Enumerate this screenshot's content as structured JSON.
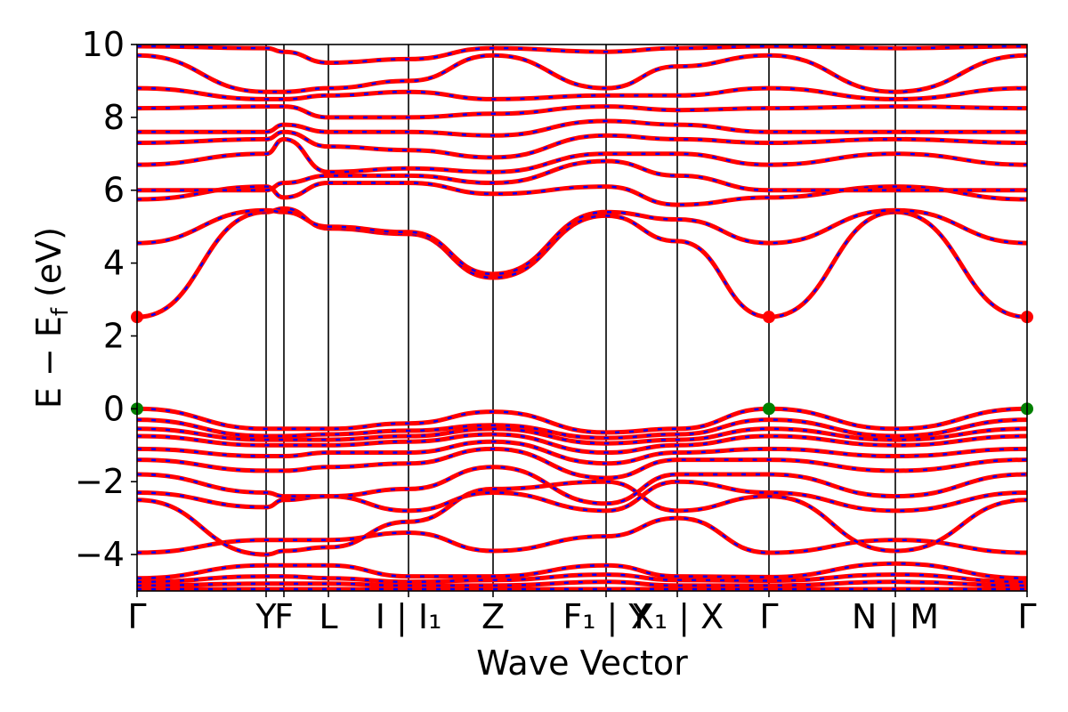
{
  "chart_data": {
    "type": "line",
    "title": "",
    "xlabel": "Wave Vector",
    "ylabel": "E − E_f (eV)",
    "ylabel_parts": {
      "main": "E − E",
      "sub": "f",
      "unit": " (eV)"
    },
    "ylim": [
      -5,
      10
    ],
    "yticks": [
      "−4",
      "−2",
      "0",
      "2",
      "4",
      "6",
      "8",
      "10"
    ],
    "ytick_values": [
      -4,
      -2,
      0,
      2,
      4,
      6,
      8,
      10
    ],
    "x_segments": [
      0,
      0.145,
      0.165,
      0.215,
      0.305,
      0.4,
      0.527,
      0.607,
      0.71,
      0.852,
      1.0
    ],
    "kpoint_labels": [
      {
        "text": "Γ",
        "x": 0.0
      },
      {
        "text": "Y",
        "x": 0.145
      },
      {
        "text": "F",
        "x": 0.165
      },
      {
        "text": "L",
        "x": 0.215
      },
      {
        "text": "I | I₁",
        "x": 0.305
      },
      {
        "text": "Z",
        "x": 0.4
      },
      {
        "text": "F₁ | Y",
        "x": 0.527
      },
      {
        "text": "X₁ | X",
        "x": 0.607
      },
      {
        "text": "Γ",
        "x": 0.71
      },
      {
        "text": "N | M",
        "x": 0.852
      },
      {
        "text": "Γ",
        "x": 1.0
      }
    ],
    "kpoint_positions": [
      0.0,
      0.145,
      0.165,
      0.215,
      0.305,
      0.4,
      0.527,
      0.607,
      0.71,
      0.852,
      1.0
    ],
    "series_style": {
      "spin_up": "#ff0000",
      "spin_down": "#0000ff"
    },
    "band_edges": {
      "cbm": {
        "energy": 2.52,
        "k": [
          0.0,
          0.71,
          1.0
        ],
        "color": "#ff0000"
      },
      "vbm": {
        "energy": 0.0,
        "k": [
          0.0,
          0.71,
          1.0
        ],
        "color": "#008000"
      }
    },
    "bands": [
      [
        -4.95,
        -4.95,
        -4.95,
        -4.95,
        -4.95,
        -4.95,
        -4.95,
        -4.95,
        -4.95,
        -4.95,
        -4.95
      ],
      [
        -4.85,
        -4.8,
        -4.8,
        -4.8,
        -4.85,
        -4.85,
        -4.75,
        -4.85,
        -4.85,
        -4.75,
        -4.85
      ],
      [
        -4.75,
        -4.6,
        -4.6,
        -4.65,
        -4.75,
        -4.7,
        -4.55,
        -4.7,
        -4.72,
        -4.55,
        -4.75
      ],
      [
        -4.65,
        -4.3,
        -4.3,
        -4.3,
        -4.6,
        -4.6,
        -4.3,
        -4.6,
        -4.62,
        -4.25,
        -4.65
      ],
      [
        -3.95,
        -3.6,
        -3.6,
        -3.6,
        -3.4,
        -3.9,
        -3.5,
        -3.0,
        -3.95,
        -3.6,
        -3.95
      ],
      [
        -2.5,
        -4.0,
        -3.9,
        -3.8,
        -3.1,
        -2.2,
        -2.0,
        -2.8,
        -2.4,
        -3.9,
        -2.5
      ],
      [
        -2.3,
        -2.7,
        -2.5,
        -2.4,
        -2.8,
        -2.3,
        -2.8,
        -2.0,
        -2.3,
        -2.8,
        -2.3
      ],
      [
        -1.8,
        -2.3,
        -2.4,
        -2.4,
        -2.2,
        -1.6,
        -2.6,
        -1.8,
        -1.8,
        -2.4,
        -1.8
      ],
      [
        -1.4,
        -1.7,
        -1.7,
        -1.6,
        -1.5,
        -1.1,
        -1.9,
        -1.4,
        -1.4,
        -1.7,
        -1.4
      ],
      [
        -1.1,
        -1.3,
        -1.3,
        -1.2,
        -1.2,
        -0.9,
        -1.5,
        -1.2,
        -1.1,
        -1.3,
        -1.1
      ],
      [
        -0.75,
        -1.0,
        -1.0,
        -1.0,
        -0.9,
        -0.7,
        -1.2,
        -1.0,
        -0.75,
        -1.0,
        -0.75
      ],
      [
        -0.55,
        -0.85,
        -0.85,
        -0.85,
        -0.75,
        -0.55,
        -0.95,
        -0.85,
        -0.55,
        -0.85,
        -0.55
      ],
      [
        -0.3,
        -0.75,
        -0.75,
        -0.7,
        -0.6,
        -0.45,
        -0.8,
        -0.7,
        -0.3,
        -0.75,
        -0.3
      ],
      [
        0.0,
        -0.55,
        -0.55,
        -0.55,
        -0.4,
        -0.08,
        -0.65,
        -0.55,
        0.0,
        -0.55,
        0.0
      ],
      [
        2.52,
        5.4,
        5.5,
        4.95,
        4.8,
        3.6,
        5.3,
        4.6,
        2.52,
        5.4,
        2.52
      ],
      [
        4.55,
        5.45,
        5.4,
        5.0,
        4.85,
        3.7,
        5.4,
        5.2,
        4.55,
        5.45,
        4.55
      ],
      [
        5.75,
        6.1,
        5.8,
        6.2,
        6.2,
        5.9,
        6.1,
        5.6,
        5.8,
        6.1,
        5.75
      ],
      [
        6.0,
        6.0,
        6.2,
        6.4,
        6.4,
        6.2,
        6.8,
        6.4,
        6.0,
        6.0,
        6.0
      ],
      [
        6.7,
        7.0,
        7.4,
        6.5,
        6.6,
        6.5,
        7.0,
        7.0,
        6.7,
        7.0,
        6.7
      ],
      [
        7.3,
        7.4,
        7.6,
        7.2,
        7.1,
        6.9,
        7.5,
        7.4,
        7.3,
        7.4,
        7.3
      ],
      [
        7.6,
        7.6,
        7.8,
        7.6,
        7.6,
        7.5,
        7.9,
        7.8,
        7.6,
        7.6,
        7.6
      ],
      [
        8.25,
        8.3,
        8.3,
        8.0,
        8.0,
        8.1,
        8.3,
        8.2,
        8.25,
        8.3,
        8.25
      ],
      [
        8.8,
        8.5,
        8.5,
        8.6,
        8.7,
        8.5,
        8.6,
        8.6,
        8.8,
        8.5,
        8.8
      ],
      [
        9.7,
        8.7,
        8.7,
        8.8,
        9.0,
        9.7,
        8.8,
        9.4,
        9.7,
        8.7,
        9.7
      ],
      [
        9.95,
        9.9,
        9.8,
        9.5,
        9.6,
        9.9,
        9.8,
        9.9,
        9.95,
        9.9,
        9.95
      ]
    ]
  }
}
